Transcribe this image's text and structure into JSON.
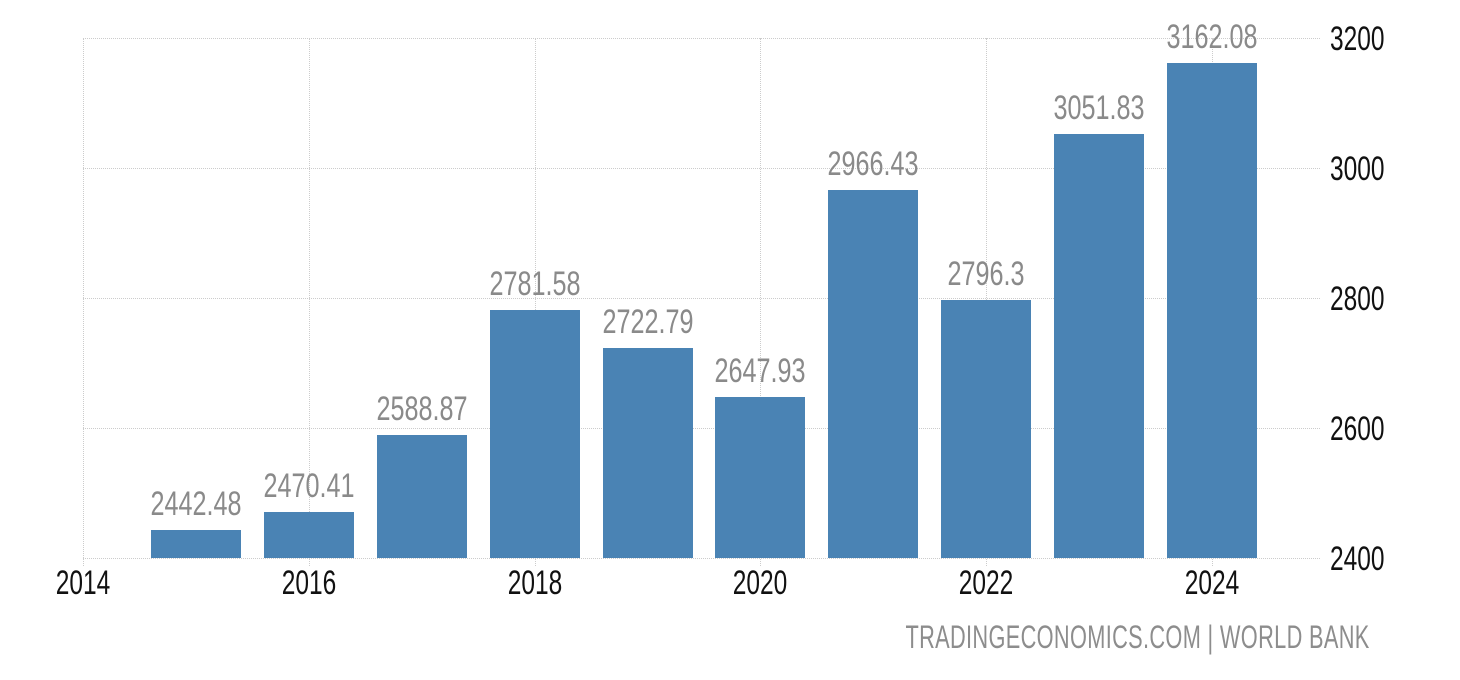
{
  "chart_data": {
    "type": "bar",
    "title": "",
    "categories": [
      2015,
      2016,
      2017,
      2018,
      2019,
      2020,
      2021,
      2022,
      2023,
      2024
    ],
    "values": [
      2442.48,
      2470.41,
      2588.87,
      2781.58,
      2722.79,
      2647.93,
      2966.43,
      2796.3,
      3051.83,
      3162.08
    ],
    "data_labels": [
      "2442.48",
      "2470.41",
      "2588.87",
      "2781.58",
      "2722.79",
      "2647.93",
      "2966.43",
      "2796.3",
      "3051.83",
      "3162.08"
    ],
    "x_ticks": [
      2014,
      2016,
      2018,
      2020,
      2022,
      2024
    ],
    "y_ticks": [
      2400,
      2600,
      2800,
      3000,
      3200
    ],
    "ylim": [
      2400,
      3200
    ],
    "xlim": [
      2014,
      2024.96
    ],
    "grid": true,
    "legend": "none",
    "y_axis_side": "right",
    "xlabel": "",
    "ylabel": "",
    "colors": {
      "bar": "#4A83B4",
      "data_label": "#8A8A8A",
      "axis_label": "#111111",
      "gridline": "#CCCCCC",
      "background": "#FFFFFF",
      "footer_text": "#8D8D8D"
    }
  },
  "footer": {
    "source_label": "TRADINGECONOMICS.COM | WORLD BANK"
  }
}
